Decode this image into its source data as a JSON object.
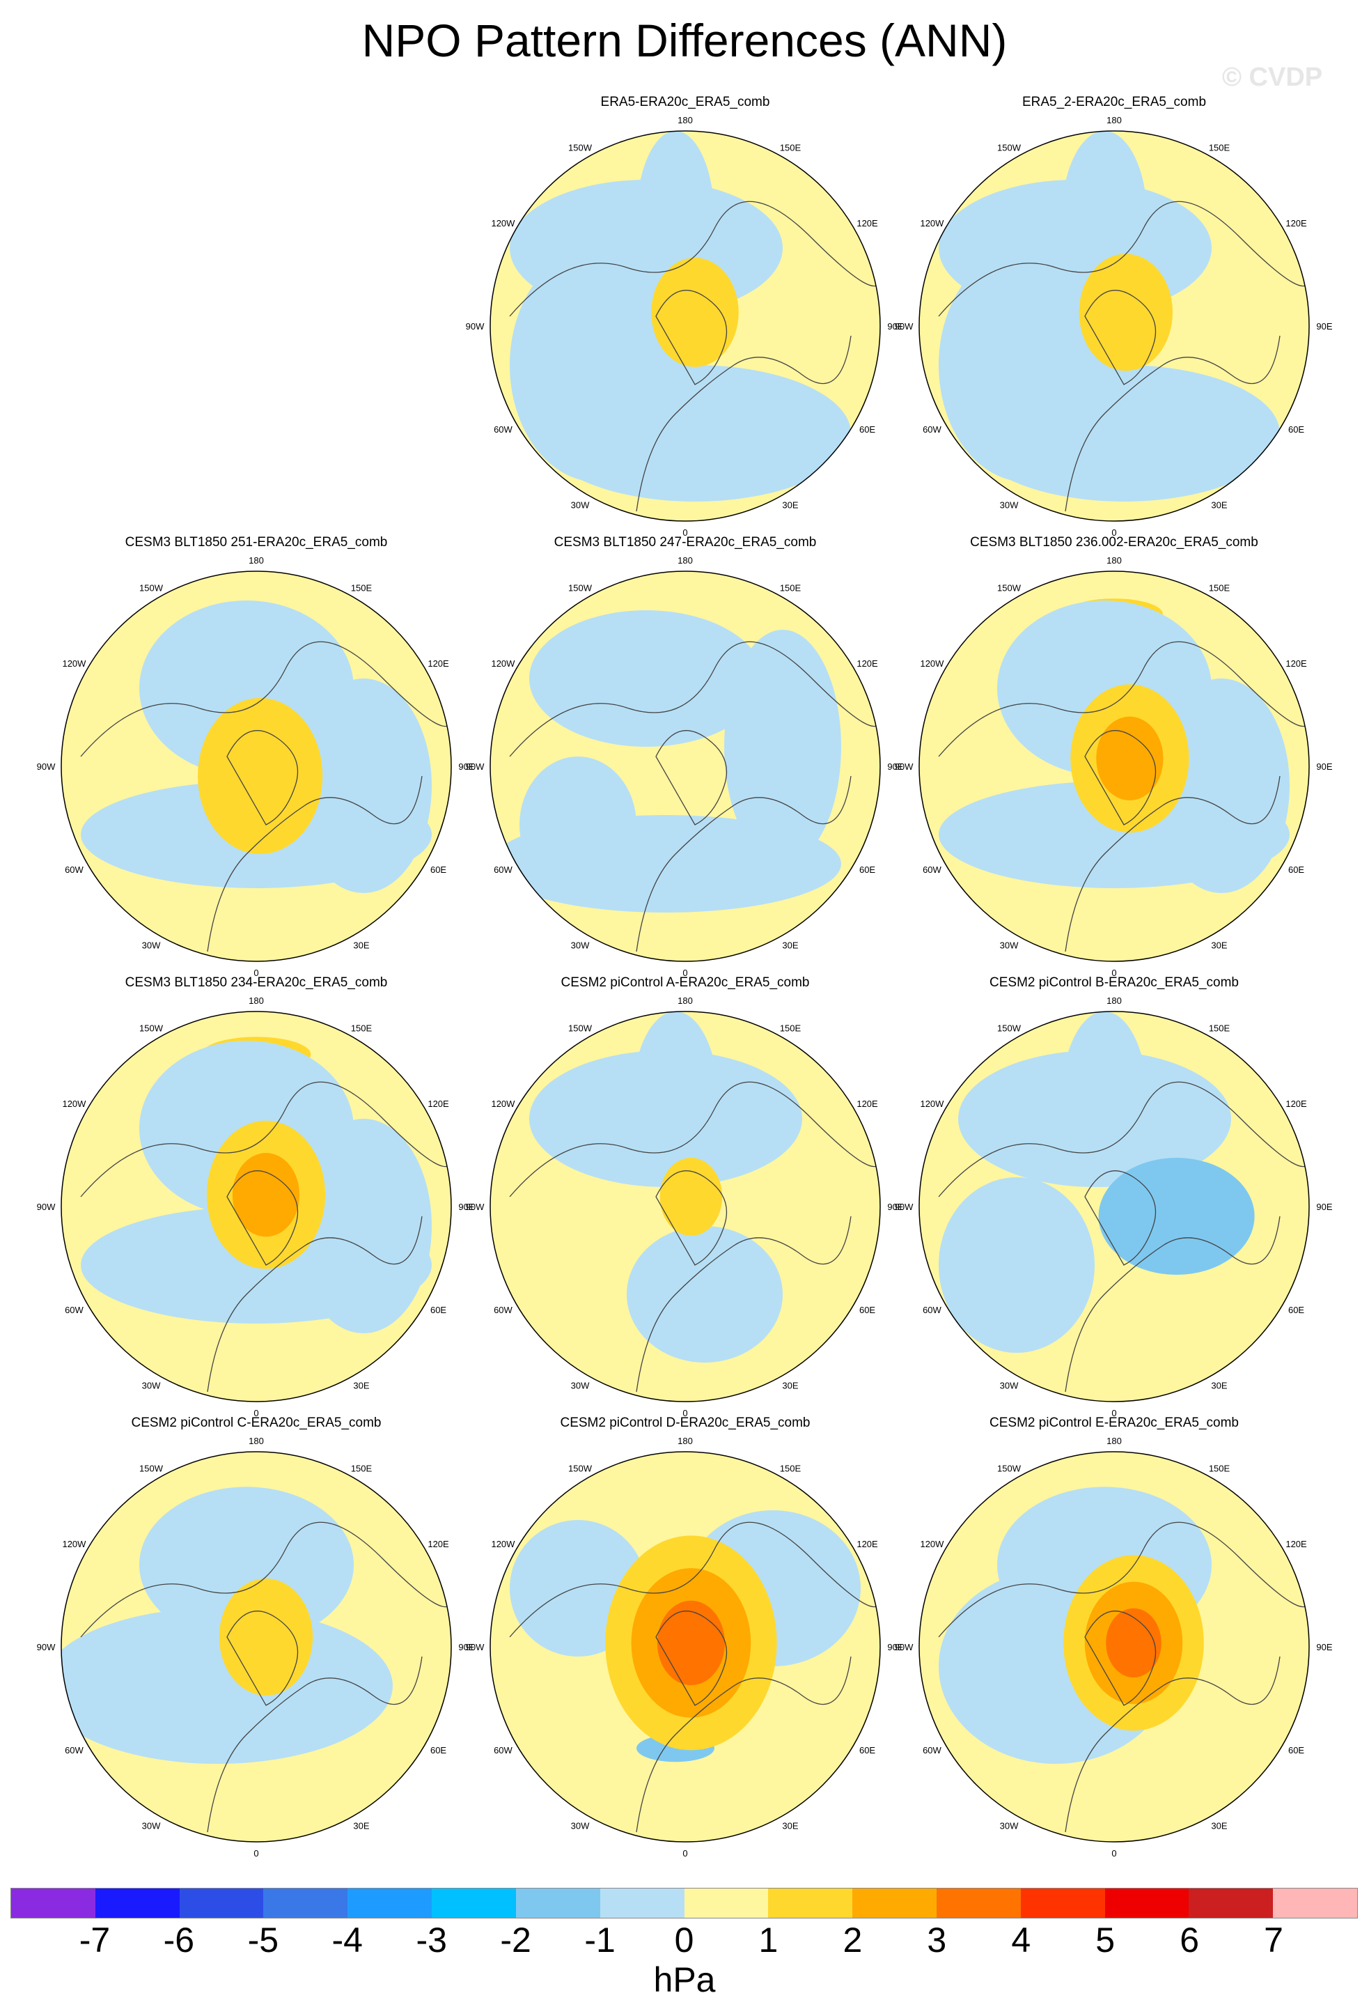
{
  "page": {
    "title": "NPO Pattern Differences (ANN)",
    "watermark": "© CVDP"
  },
  "chart_data": {
    "type": "polar-contour-map-grid",
    "units": "hPa",
    "colorbar_levels": [
      "-7",
      "-6",
      "-5",
      "-4",
      "-3",
      "-2",
      "-1",
      "0",
      "1",
      "2",
      "3",
      "4",
      "5",
      "6",
      "7"
    ],
    "colorbar_colors": [
      "#8a2be2",
      "#1a1aff",
      "#2d4ee6",
      "#3a78e8",
      "#1e9bff",
      "#00c0ff",
      "#7ec8f0",
      "#b6dff5",
      "#fff6a0",
      "#ffd82e",
      "#ffaa00",
      "#ff7300",
      "#ff3300",
      "#ee0000",
      "#cc1f1f",
      "#ffb6b6"
    ],
    "longitude_labels": [
      "180",
      "150E",
      "120E",
      "90E",
      "60E",
      "30E",
      "0",
      "30W",
      "60W",
      "90W",
      "120W",
      "150W"
    ],
    "panels": [
      {
        "id": "era5-comb",
        "title": "ERA5-ERA20c_ERA5_comb",
        "row": 0,
        "col": 1,
        "peak_value": 1.8,
        "trough_value": -0.7
      },
      {
        "id": "era5-2-comb",
        "title": "ERA5_2-ERA20c_ERA5_comb",
        "row": 0,
        "col": 2,
        "peak_value": 1.7,
        "trough_value": -0.8
      },
      {
        "id": "cesm3-251",
        "title": "CESM3 BLT1850 251-ERA20c_ERA5_comb",
        "row": 1,
        "col": 0,
        "peak_value": 1.9,
        "trough_value": -1.6
      },
      {
        "id": "cesm3-247",
        "title": "CESM3 BLT1850 247-ERA20c_ERA5_comb",
        "row": 1,
        "col": 1,
        "peak_value": 0.8,
        "trough_value": -0.9
      },
      {
        "id": "cesm3-236",
        "title": "CESM3 BLT1850 236.002-ERA20c_ERA5_comb",
        "row": 1,
        "col": 2,
        "peak_value": 2.2,
        "trough_value": -1.5
      },
      {
        "id": "cesm3-234",
        "title": "CESM3 BLT1850 234-ERA20c_ERA5_comb",
        "row": 2,
        "col": 0,
        "peak_value": 2.6,
        "trough_value": -1.7
      },
      {
        "id": "cesm2-a",
        "title": "CESM2 piControl A-ERA20c_ERA5_comb",
        "row": 2,
        "col": 1,
        "peak_value": 1.1,
        "trough_value": -0.8
      },
      {
        "id": "cesm2-b",
        "title": "CESM2 piControl B-ERA20c_ERA5_comb",
        "row": 2,
        "col": 2,
        "peak_value": 0.7,
        "trough_value": -1.2
      },
      {
        "id": "cesm2-c",
        "title": "CESM2 piControl C-ERA20c_ERA5_comb",
        "row": 3,
        "col": 0,
        "peak_value": 1.6,
        "trough_value": -1.4
      },
      {
        "id": "cesm2-d",
        "title": "CESM2 piControl D-ERA20c_ERA5_comb",
        "row": 3,
        "col": 1,
        "peak_value": 3.6,
        "trough_value": -1.3
      },
      {
        "id": "cesm2-e",
        "title": "CESM2 piControl E-ERA20c_ERA5_comb",
        "row": 3,
        "col": 2,
        "peak_value": 3.2,
        "trough_value": -0.9
      }
    ]
  }
}
